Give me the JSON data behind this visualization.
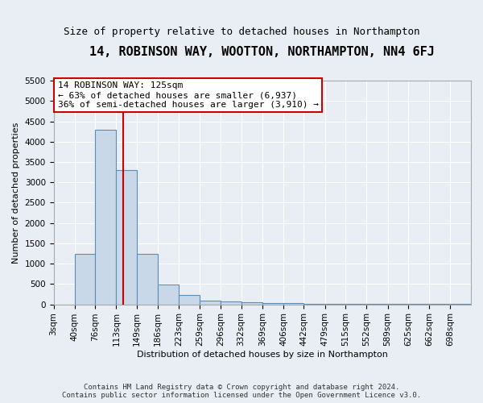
{
  "title": "14, ROBINSON WAY, WOOTTON, NORTHAMPTON, NN4 6FJ",
  "subtitle": "Size of property relative to detached houses in Northampton",
  "xlabel": "Distribution of detached houses by size in Northampton",
  "ylabel": "Number of detached properties",
  "bin_edges": [
    3,
    40,
    76,
    113,
    149,
    186,
    223,
    259,
    296,
    332,
    369,
    406,
    442,
    479,
    515,
    552,
    589,
    625,
    662,
    698,
    735
  ],
  "bar_heights": [
    0,
    1250,
    4300,
    3300,
    1250,
    480,
    230,
    100,
    80,
    50,
    40,
    30,
    20,
    15,
    10,
    8,
    5,
    4,
    3,
    2
  ],
  "bar_color": "#c8d8e8",
  "bar_edge_color": "#5b8db8",
  "property_line_x": 125,
  "property_line_color": "#cc0000",
  "annotation_line1": "14 ROBINSON WAY: 125sqm",
  "annotation_line2": "← 63% of detached houses are smaller (6,937)",
  "annotation_line3": "36% of semi-detached houses are larger (3,910) →",
  "annotation_box_facecolor": "#ffffff",
  "annotation_box_edgecolor": "#cc0000",
  "ylim": [
    0,
    5500
  ],
  "yticks": [
    0,
    500,
    1000,
    1500,
    2000,
    2500,
    3000,
    3500,
    4000,
    4500,
    5000,
    5500
  ],
  "footer_line1": "Contains HM Land Registry data © Crown copyright and database right 2024.",
  "footer_line2": "Contains public sector information licensed under the Open Government Licence v3.0.",
  "title_fontsize": 11,
  "subtitle_fontsize": 9,
  "ylabel_fontsize": 8,
  "xlabel_fontsize": 8,
  "tick_label_fontsize": 7.5,
  "annotation_fontsize": 8,
  "footer_fontsize": 6.5,
  "background_color": "#e8eef4",
  "plot_bg_color": "#e8eef4",
  "grid_color": "#ffffff"
}
